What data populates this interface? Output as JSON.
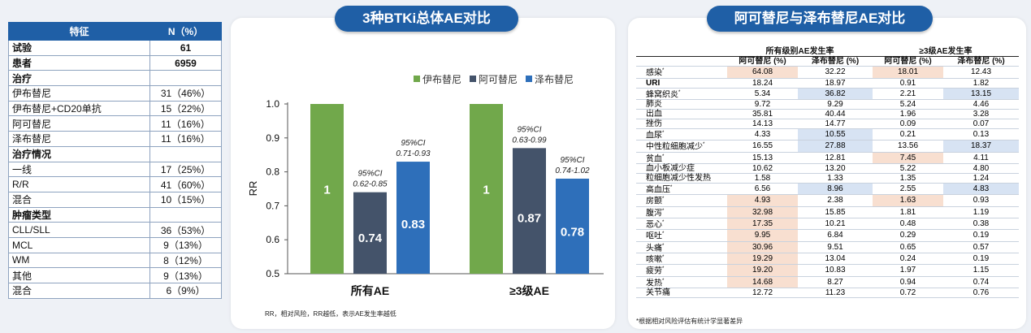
{
  "left_table": {
    "headers": [
      "特征",
      "N（%）"
    ],
    "rows": [
      {
        "label": "试验",
        "value": "61",
        "cat": true
      },
      {
        "label": "患者",
        "value": "6959",
        "cat": true
      },
      {
        "label": "治疗",
        "value": "",
        "cat": true
      },
      {
        "label": "伊布替尼",
        "value": "31（46%）",
        "cat": false
      },
      {
        "label": "伊布替尼+CD20单抗",
        "value": "15（22%）",
        "cat": false
      },
      {
        "label": "阿可替尼",
        "value": "11（16%）",
        "cat": false
      },
      {
        "label": "泽布替尼",
        "value": "11（16%）",
        "cat": false
      },
      {
        "label": "治疗情况",
        "value": "",
        "cat": true
      },
      {
        "label": "一线",
        "value": "17（25%）",
        "cat": false
      },
      {
        "label": "R/R",
        "value": "41（60%）",
        "cat": false
      },
      {
        "label": "混合",
        "value": "10（15%）",
        "cat": false
      },
      {
        "label": "肿瘤类型",
        "value": "",
        "cat": true
      },
      {
        "label": "CLL/SLL",
        "value": "36（53%）",
        "cat": false
      },
      {
        "label": "MCL",
        "value": "9（13%）",
        "cat": false
      },
      {
        "label": "WM",
        "value": "8（12%）",
        "cat": false
      },
      {
        "label": "其他",
        "value": "9（13%）",
        "cat": false
      },
      {
        "label": "混合",
        "value": "6（9%）",
        "cat": false
      }
    ]
  },
  "mid_panel": {
    "title": "3种BTKi总体AE对比",
    "note": "RR，相对风险，RR越低，表示AE发生率越低"
  },
  "right_panel": {
    "title": "阿可替尼与泽布替尼AE对比",
    "note": "*根据相对风险评估有统计学显著差异"
  },
  "chart_data": {
    "type": "bar",
    "categories": [
      "所有AE",
      "≥3级AE"
    ],
    "ylabel": "RR",
    "ylim": [
      0.5,
      1.0
    ],
    "yticks": [
      "1.0",
      "0.9",
      "0.8",
      "0.7",
      "0.6",
      "0.5"
    ],
    "legend_position": "top-right",
    "series": [
      {
        "name": "伊布替尼",
        "color": "#71a84b",
        "values": [
          1,
          1
        ],
        "labels": [
          "1",
          "1"
        ],
        "ci": [
          "",
          ""
        ]
      },
      {
        "name": "阿可替尼",
        "color": "#44536a",
        "values": [
          0.74,
          0.87
        ],
        "labels": [
          "0.74",
          "0.87"
        ],
        "ci": [
          "0.62-0.85",
          "0.63-0.99"
        ]
      },
      {
        "name": "泽布替尼",
        "color": "#2e6fba",
        "values": [
          0.83,
          0.78
        ],
        "labels": [
          "0.83",
          "0.78"
        ],
        "ci": [
          "0.71-0.93",
          "0.74-1.02"
        ]
      }
    ],
    "ci_label": "95%CI"
  },
  "ae_table": {
    "group_headers": [
      "所有级别AE发生率",
      "≥3级AE发生率"
    ],
    "sub_headers": [
      "阿可替尼 (%)",
      "泽布替尼 (%)",
      "阿可替尼 (%)",
      "泽布替尼 (%)"
    ],
    "rows": [
      {
        "name": "感染",
        "star": true,
        "v": [
          "64.08",
          "32.22",
          "18.01",
          "12.43"
        ],
        "hl": [
          "o",
          "",
          "o",
          ""
        ]
      },
      {
        "name": "URI",
        "star": false,
        "bold": true,
        "v": [
          "18.24",
          "18.97",
          "0.91",
          "1.82"
        ],
        "hl": [
          "",
          "",
          "",
          ""
        ]
      },
      {
        "name": "蜂窝织炎",
        "star": true,
        "v": [
          "5.34",
          "36.82",
          "2.21",
          "13.15"
        ],
        "hl": [
          "",
          "b",
          "",
          "b"
        ]
      },
      {
        "name": "肺炎",
        "star": false,
        "v": [
          "9.72",
          "9.29",
          "5.24",
          "4.46"
        ],
        "hl": [
          "",
          "",
          "",
          ""
        ]
      },
      {
        "name": "出血",
        "star": false,
        "v": [
          "35.81",
          "40.44",
          "1.96",
          "3.28"
        ],
        "hl": [
          "",
          "",
          "",
          ""
        ]
      },
      {
        "name": "挫伤",
        "star": false,
        "v": [
          "14.13",
          "14.77",
          "0.09",
          "0.07"
        ],
        "hl": [
          "",
          "",
          "",
          ""
        ]
      },
      {
        "name": "血尿",
        "star": true,
        "v": [
          "4.33",
          "10.55",
          "0.21",
          "0.13"
        ],
        "hl": [
          "",
          "b",
          "",
          ""
        ]
      },
      {
        "name": "中性粒细胞减少",
        "star": true,
        "v": [
          "16.55",
          "27.88",
          "13.56",
          "18.37"
        ],
        "hl": [
          "",
          "b",
          "",
          "b"
        ]
      },
      {
        "name": "贫血",
        "star": true,
        "v": [
          "15.13",
          "12.81",
          "7.45",
          "4.11"
        ],
        "hl": [
          "",
          "",
          "o",
          ""
        ]
      },
      {
        "name": "血小板减少症",
        "star": false,
        "v": [
          "10.62",
          "13.20",
          "5.22",
          "4.80"
        ],
        "hl": [
          "",
          "",
          "",
          ""
        ]
      },
      {
        "name": "粒细胞减少性发热",
        "star": false,
        "v": [
          "1.58",
          "1.33",
          "1.35",
          "1.24"
        ],
        "hl": [
          "",
          "",
          "",
          ""
        ]
      },
      {
        "name": "高血压",
        "star": true,
        "v": [
          "6.56",
          "8.96",
          "2.55",
          "4.83"
        ],
        "hl": [
          "",
          "b",
          "",
          "b"
        ]
      },
      {
        "name": "房颤",
        "star": true,
        "v": [
          "4.93",
          "2.38",
          "1.63",
          "0.93"
        ],
        "hl": [
          "o",
          "",
          "o",
          ""
        ]
      },
      {
        "name": "腹泻",
        "star": true,
        "v": [
          "32.98",
          "15.85",
          "1.81",
          "1.19"
        ],
        "hl": [
          "o",
          "",
          "",
          ""
        ]
      },
      {
        "name": "恶心",
        "star": true,
        "v": [
          "17.35",
          "10.21",
          "0.48",
          "0.38"
        ],
        "hl": [
          "o",
          "",
          "",
          ""
        ]
      },
      {
        "name": "呕吐",
        "star": true,
        "v": [
          "9.95",
          "6.84",
          "0.29",
          "0.19"
        ],
        "hl": [
          "o",
          "",
          "",
          ""
        ]
      },
      {
        "name": "头痛",
        "star": true,
        "v": [
          "30.96",
          "9.51",
          "0.65",
          "0.57"
        ],
        "hl": [
          "o",
          "",
          "",
          ""
        ]
      },
      {
        "name": "咳嗽",
        "star": true,
        "v": [
          "19.29",
          "13.04",
          "0.24",
          "0.19"
        ],
        "hl": [
          "o",
          "",
          "",
          ""
        ]
      },
      {
        "name": "疲劳",
        "star": true,
        "v": [
          "19.20",
          "10.83",
          "1.97",
          "1.15"
        ],
        "hl": [
          "o",
          "",
          "",
          ""
        ]
      },
      {
        "name": "发热",
        "star": true,
        "v": [
          "14.68",
          "8.27",
          "0.94",
          "0.74"
        ],
        "hl": [
          "o",
          "",
          "",
          ""
        ]
      },
      {
        "name": "关节痛",
        "star": false,
        "v": [
          "12.72",
          "11.23",
          "0.72",
          "0.76"
        ],
        "hl": [
          "",
          "",
          "",
          ""
        ]
      }
    ]
  }
}
